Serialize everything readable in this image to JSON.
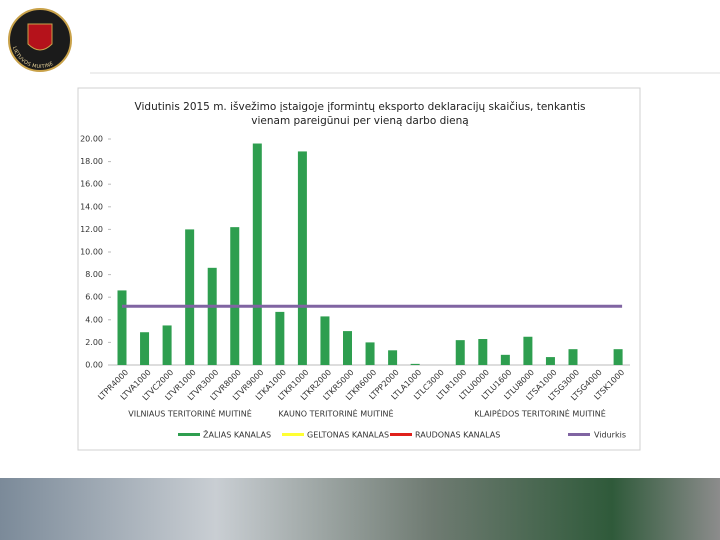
{
  "header": {
    "logo_text": "LIETUVOS MUITINĖ"
  },
  "chart_data": {
    "type": "bar",
    "title": [
      "Vidutinis 2015 m. išvežimo įstaigoje įformintų eksporto deklaracijų skaičius, tenkantis",
      "vienam pareigūnui per vieną darbo dieną"
    ],
    "categories": [
      "LTPR4000",
      "LTVA1000",
      "LTVC2000",
      "LTVR1000",
      "LTVR3000",
      "LTVR8000",
      "LTVR9000",
      "LTKA1000",
      "LTKR1000",
      "LTKR2000",
      "LTKR5000",
      "LTKR6000",
      "LTPP2000",
      "LTLA1000",
      "LTLC3000",
      "LTLR1000",
      "LTLU0000",
      "LTLU1600",
      "LTLU8000",
      "LTSA1000",
      "LTSG3000",
      "LTSG4000",
      "LTSK1000"
    ],
    "values": [
      6.6,
      2.9,
      3.5,
      12.0,
      8.6,
      12.2,
      19.6,
      4.7,
      18.9,
      4.3,
      3.0,
      2.0,
      1.3,
      0.1,
      0,
      2.2,
      2.3,
      0.9,
      2.5,
      0.7,
      1.4,
      0,
      1.4
    ],
    "color": "#2e9e4f",
    "average": {
      "name": "Vidurkis",
      "color": "#8064a2",
      "value": 5.2
    },
    "legend": [
      {
        "name": "ŽALIAS KANALAS",
        "color": "#2e9e4f"
      },
      {
        "name": "GELTONAS KANALAS",
        "color": "#ffff33"
      },
      {
        "name": "RAUDONAS KANALAS",
        "color": "#e0201b"
      }
    ],
    "groups": [
      "VILNIAUS TERITORINĖ MUITINĖ",
      "KAUNO TERITORINĖ MUITINĖ",
      "KLAIPĖDOS TERITORINĖ MUITINĖ"
    ],
    "ylim": [
      0,
      20
    ],
    "yticks": [
      {
        "value": 0,
        "label": "0.00"
      },
      {
        "value": 2,
        "label": "2.00"
      },
      {
        "value": 4,
        "label": "4.00"
      },
      {
        "value": 6,
        "label": "6.00"
      },
      {
        "value": 8,
        "label": "8.00"
      },
      {
        "value": 10,
        "label": "10.00"
      },
      {
        "value": 12,
        "label": "12.00"
      },
      {
        "value": 14,
        "label": "14.00"
      },
      {
        "value": 16,
        "label": "16.00"
      },
      {
        "value": 18,
        "label": "18.00"
      },
      {
        "value": 20,
        "label": "20.00"
      }
    ]
  }
}
